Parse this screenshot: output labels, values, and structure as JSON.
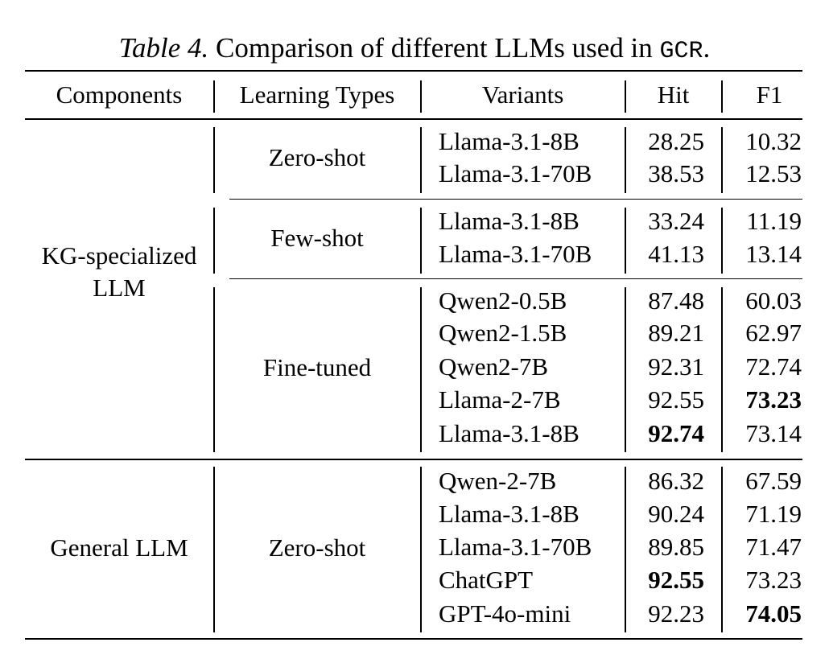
{
  "caption": {
    "label": "Table 4.",
    "text": " Comparison of different LLMs used in ",
    "code": "GCR",
    "end": "."
  },
  "headers": {
    "components": "Components",
    "learning_types": "Learning Types",
    "variants": "Variants",
    "hit": "Hit",
    "f1": "F1"
  },
  "groups": {
    "kg": {
      "line1": "KG-specialized",
      "line2": "LLM"
    },
    "general": {
      "label": "General LLM"
    }
  },
  "learning_types": {
    "zero_shot": "Zero-shot",
    "few_shot": "Few-shot",
    "fine_tuned": "Fine-tuned",
    "general_zero_shot": "Zero-shot"
  },
  "rows": [
    {
      "variant": "Llama-3.1-8B",
      "hit": "28.25",
      "f1": "10.32"
    },
    {
      "variant": "Llama-3.1-70B",
      "hit": "38.53",
      "f1": "12.53"
    },
    {
      "variant": "Llama-3.1-8B",
      "hit": "33.24",
      "f1": "11.19"
    },
    {
      "variant": "Llama-3.1-70B",
      "hit": "41.13",
      "f1": "13.14"
    },
    {
      "variant": "Qwen2-0.5B",
      "hit": "87.48",
      "f1": "60.03"
    },
    {
      "variant": "Qwen2-1.5B",
      "hit": "89.21",
      "f1": "62.97"
    },
    {
      "variant": "Qwen2-7B",
      "hit": "92.31",
      "f1": "72.74"
    },
    {
      "variant": "Llama-2-7B",
      "hit": "92.55",
      "f1": "73.23",
      "f1_bold": true
    },
    {
      "variant": "Llama-3.1-8B",
      "hit": "92.74",
      "f1": "73.14",
      "hit_bold": true
    },
    {
      "variant": "Qwen-2-7B",
      "hit": "86.32",
      "f1": "67.59"
    },
    {
      "variant": "Llama-3.1-8B",
      "hit": "90.24",
      "f1": "71.19"
    },
    {
      "variant": "Llama-3.1-70B",
      "hit": "89.85",
      "f1": "71.47"
    },
    {
      "variant": "ChatGPT",
      "hit": "92.55",
      "f1": "73.23",
      "hit_bold": true
    },
    {
      "variant": "GPT-4o-mini",
      "hit": "92.23",
      "f1": "74.05",
      "f1_bold": true
    }
  ]
}
